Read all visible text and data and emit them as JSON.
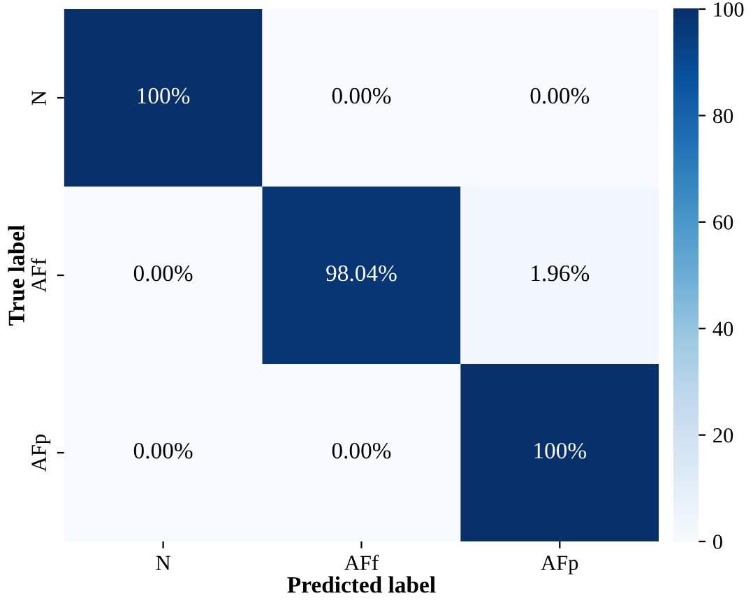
{
  "chart_data": {
    "type": "heatmap",
    "xlabel": "Predicted label",
    "ylabel": "True label",
    "categories": [
      "N",
      "AFf",
      "AFp"
    ],
    "y_categories": [
      "N",
      "AFf",
      "AFp"
    ],
    "cells": [
      [
        100,
        0,
        0
      ],
      [
        0,
        98.04,
        1.96
      ],
      [
        0,
        0,
        100
      ]
    ],
    "cell_labels": [
      [
        "100%",
        "0.00%",
        "0.00%"
      ],
      [
        "0.00%",
        "98.04%",
        "1.96%"
      ],
      [
        "0.00%",
        "0.00%",
        "100%"
      ]
    ],
    "clim": [
      0,
      100
    ],
    "cticks": [
      0,
      20,
      40,
      60,
      80,
      100
    ]
  }
}
